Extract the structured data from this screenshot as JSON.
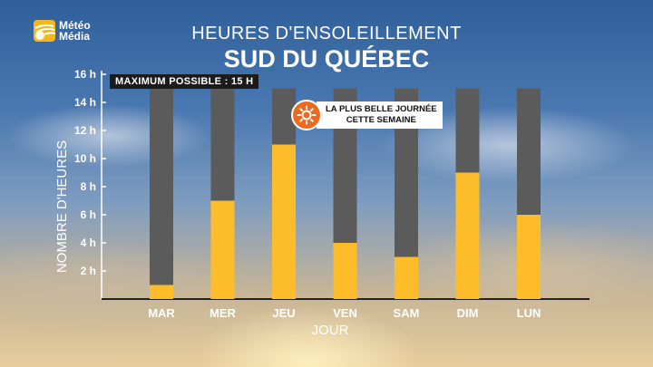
{
  "logo": {
    "line1": "Météo",
    "line2": "Média"
  },
  "header": {
    "title": "HEURES D'ENSOLEILLEMENT",
    "subtitle": "SUD DU QUÉBEC"
  },
  "annotations": {
    "max_possible": "MAXIMUM POSSIBLE : 15 H",
    "best_day_line1": "LA PLUS BELLE JOURNÉE",
    "best_day_line2": "CETTE SEMAINE"
  },
  "colors": {
    "sun": "#fdbd2a",
    "max": "#5b5b5b",
    "accent": "#e96b22"
  },
  "chart_data": {
    "type": "bar",
    "xlabel": "JOUR",
    "ylabel": "NOMBRE D'HEURES",
    "categories": [
      "MAR",
      "MER",
      "JEU",
      "VEN",
      "SAM",
      "DIM",
      "LUN"
    ],
    "series": [
      {
        "name": "",
        "values": [
          1,
          7,
          11,
          4,
          3,
          9,
          6
        ]
      }
    ],
    "max_possible": 15,
    "ylim": [
      0,
      16
    ],
    "yticks": [
      2,
      4,
      6,
      8,
      10,
      12,
      14,
      16
    ],
    "ytick_labels": [
      "2 h",
      "4 h",
      "6 h",
      "8 h",
      "10 h",
      "12 h",
      "14 h",
      "16 h"
    ],
    "grid": false,
    "best_day": "JEU"
  }
}
